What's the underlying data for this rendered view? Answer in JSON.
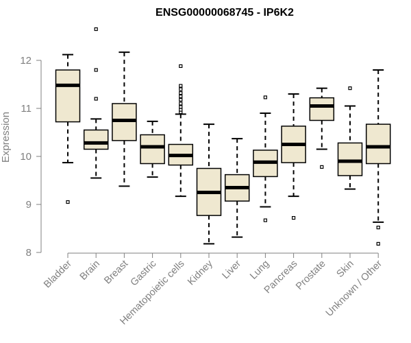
{
  "chart_data": {
    "type": "boxplot",
    "title": "ENSG00000068745 - IP6K2",
    "ylabel": "Expression",
    "xlabel": "",
    "ylim": [
      8,
      12.4
    ],
    "yticks": [
      8,
      9,
      10,
      11,
      12
    ],
    "box_color": "#efe8d0",
    "categories": [
      "Bladder",
      "Brain",
      "Breast",
      "Gastric",
      "Hematopoietic cells",
      "Kidney",
      "Liver",
      "Lung",
      "Pancreas",
      "Prostate",
      "Skin",
      "Unknown / Other"
    ],
    "series": [
      {
        "category": "Bladder",
        "whisker_low": 9.87,
        "q1": 10.72,
        "median": 11.48,
        "q3": 11.8,
        "whisker_high": 12.12,
        "outliers": [
          9.05
        ]
      },
      {
        "category": "Brain",
        "whisker_low": 9.55,
        "q1": 10.15,
        "median": 10.28,
        "q3": 10.55,
        "whisker_high": 10.78,
        "outliers": [
          11.2,
          11.8,
          12.65
        ]
      },
      {
        "category": "Breast",
        "whisker_low": 9.38,
        "q1": 10.33,
        "median": 10.75,
        "q3": 11.1,
        "whisker_high": 12.17,
        "outliers": []
      },
      {
        "category": "Gastric",
        "whisker_low": 9.57,
        "q1": 9.85,
        "median": 10.2,
        "q3": 10.45,
        "whisker_high": 10.73,
        "outliers": []
      },
      {
        "category": "Hematopoietic cells",
        "whisker_low": 9.17,
        "q1": 9.82,
        "median": 10.02,
        "q3": 10.25,
        "whisker_high": 10.88,
        "outliers": [
          10.92,
          10.97,
          11.03,
          11.1,
          11.18,
          11.25,
          11.32,
          11.4,
          11.47,
          11.88
        ]
      },
      {
        "category": "Kidney",
        "whisker_low": 8.18,
        "q1": 8.77,
        "median": 9.25,
        "q3": 9.75,
        "whisker_high": 10.67,
        "outliers": []
      },
      {
        "category": "Liver",
        "whisker_low": 8.32,
        "q1": 9.07,
        "median": 9.35,
        "q3": 9.62,
        "whisker_high": 10.37,
        "outliers": []
      },
      {
        "category": "Lung",
        "whisker_low": 8.95,
        "q1": 9.58,
        "median": 9.88,
        "q3": 10.13,
        "whisker_high": 10.9,
        "outliers": [
          8.67,
          11.23
        ]
      },
      {
        "category": "Pancreas",
        "whisker_low": 9.17,
        "q1": 9.87,
        "median": 10.25,
        "q3": 10.63,
        "whisker_high": 11.3,
        "outliers": [
          8.72
        ]
      },
      {
        "category": "Prostate",
        "whisker_low": 10.15,
        "q1": 10.75,
        "median": 11.05,
        "q3": 11.22,
        "whisker_high": 11.42,
        "outliers": [
          9.78
        ]
      },
      {
        "category": "Skin",
        "whisker_low": 9.32,
        "q1": 9.6,
        "median": 9.9,
        "q3": 10.28,
        "whisker_high": 11.05,
        "outliers": [
          11.42
        ]
      },
      {
        "category": "Unknown / Other",
        "whisker_low": 8.63,
        "q1": 9.85,
        "median": 10.2,
        "q3": 10.67,
        "whisker_high": 11.8,
        "outliers": [
          8.52,
          8.18
        ]
      }
    ]
  }
}
